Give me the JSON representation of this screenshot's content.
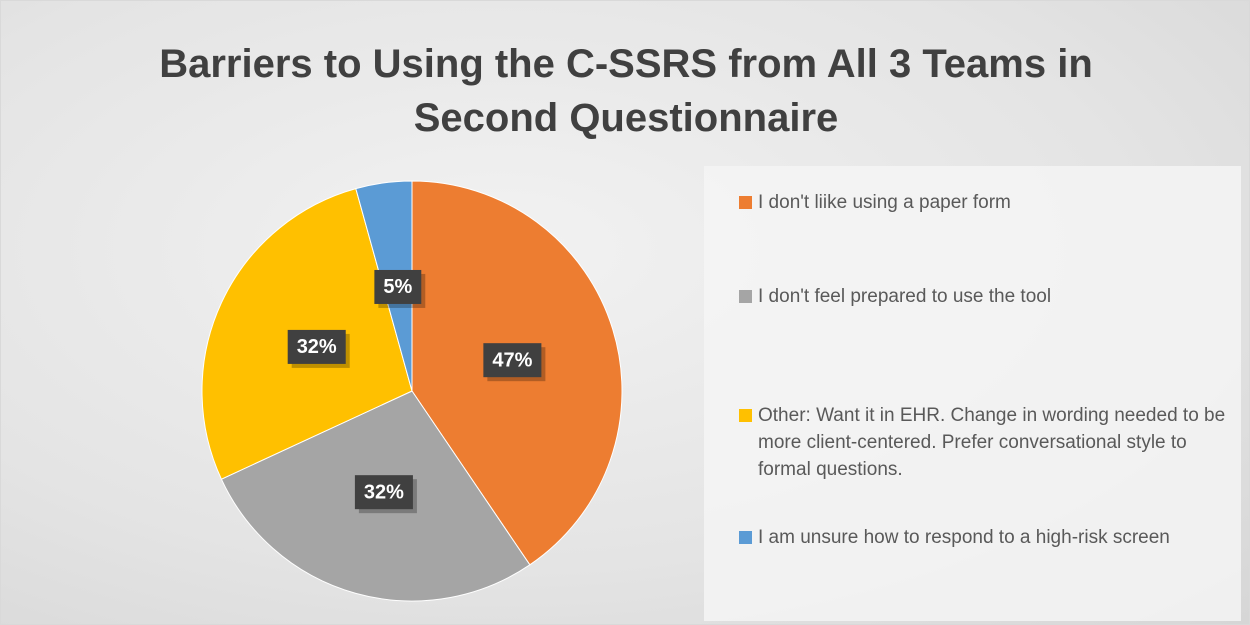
{
  "chart_data": {
    "type": "pie",
    "title": "Barriers to Using the C-SSRS from All 3 Teams in Second Questionnaire",
    "categories": [
      "I don't liike using a paper form",
      "I don't feel prepared to use the tool",
      "Other: Want it in EHR. Change in wording needed to be more client-centered. Prefer conversational style to formal questions.",
      "I am unsure how to respond to a high-risk screen"
    ],
    "values": [
      47,
      32,
      32,
      5
    ],
    "value_labels": [
      "47%",
      "32%",
      "32%",
      "5%"
    ],
    "colors": [
      "#ed7d31",
      "#a5a5a5",
      "#ffc000",
      "#5b9bd5"
    ],
    "legend": "right"
  }
}
